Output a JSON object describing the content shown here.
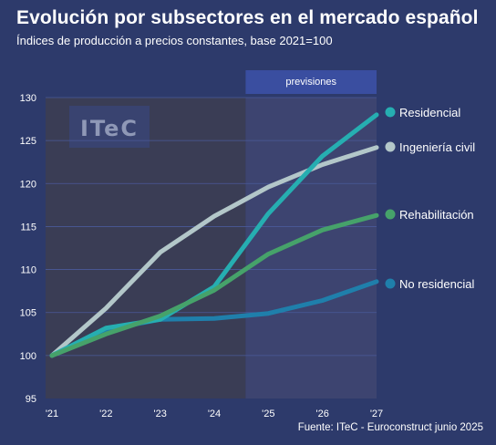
{
  "header": {
    "title": "Evolución por subsectores en el mercado español",
    "subtitle": "Índices de producción a precios constantes, base 2021=100"
  },
  "footer": {
    "source": "Fuente: ITeC - Euroconstruct junio 2025"
  },
  "logo": {
    "text": "ITeC"
  },
  "forecast_band": {
    "label": "previsiones"
  },
  "colors": {
    "background": "#2d3a6b",
    "historical_shade": "#3a3d55",
    "forecast_shade": "#3d4470",
    "forecast_band": "#3a4ea0",
    "grid": "#4a5a9a",
    "Residencial": "#26aeb1",
    "Ingeniería civil": "#b3c7c9",
    "Rehabilitación": "#46a26a",
    "No residencial": "#1f7fab"
  },
  "chart_data": {
    "type": "line",
    "title": "Evolución por subsectores en el mercado español",
    "subtitle": "Índices de producción a precios constantes, base 2021=100",
    "x": [
      "'21",
      "'22",
      "'23",
      "'24",
      "'25",
      "'26",
      "'27"
    ],
    "ylim": [
      95,
      130
    ],
    "yticks": [
      95,
      100,
      105,
      110,
      115,
      120,
      125,
      130
    ],
    "forecast_from": "'25",
    "grid": true,
    "legend": "right, at line ends",
    "series": [
      {
        "name": "Residencial",
        "values": [
          100,
          103.2,
          104.2,
          108,
          116.5,
          123.2,
          128
        ]
      },
      {
        "name": "Ingeniería civil",
        "values": [
          100,
          105.5,
          112,
          116.2,
          119.6,
          122.2,
          124.2
        ]
      },
      {
        "name": "Rehabilitación",
        "values": [
          100,
          102.5,
          104.6,
          107.6,
          111.8,
          114.6,
          116.3
        ]
      },
      {
        "name": "No residencial",
        "values": [
          100,
          103,
          104.2,
          104.3,
          104.9,
          106.4,
          108.6
        ]
      }
    ]
  }
}
